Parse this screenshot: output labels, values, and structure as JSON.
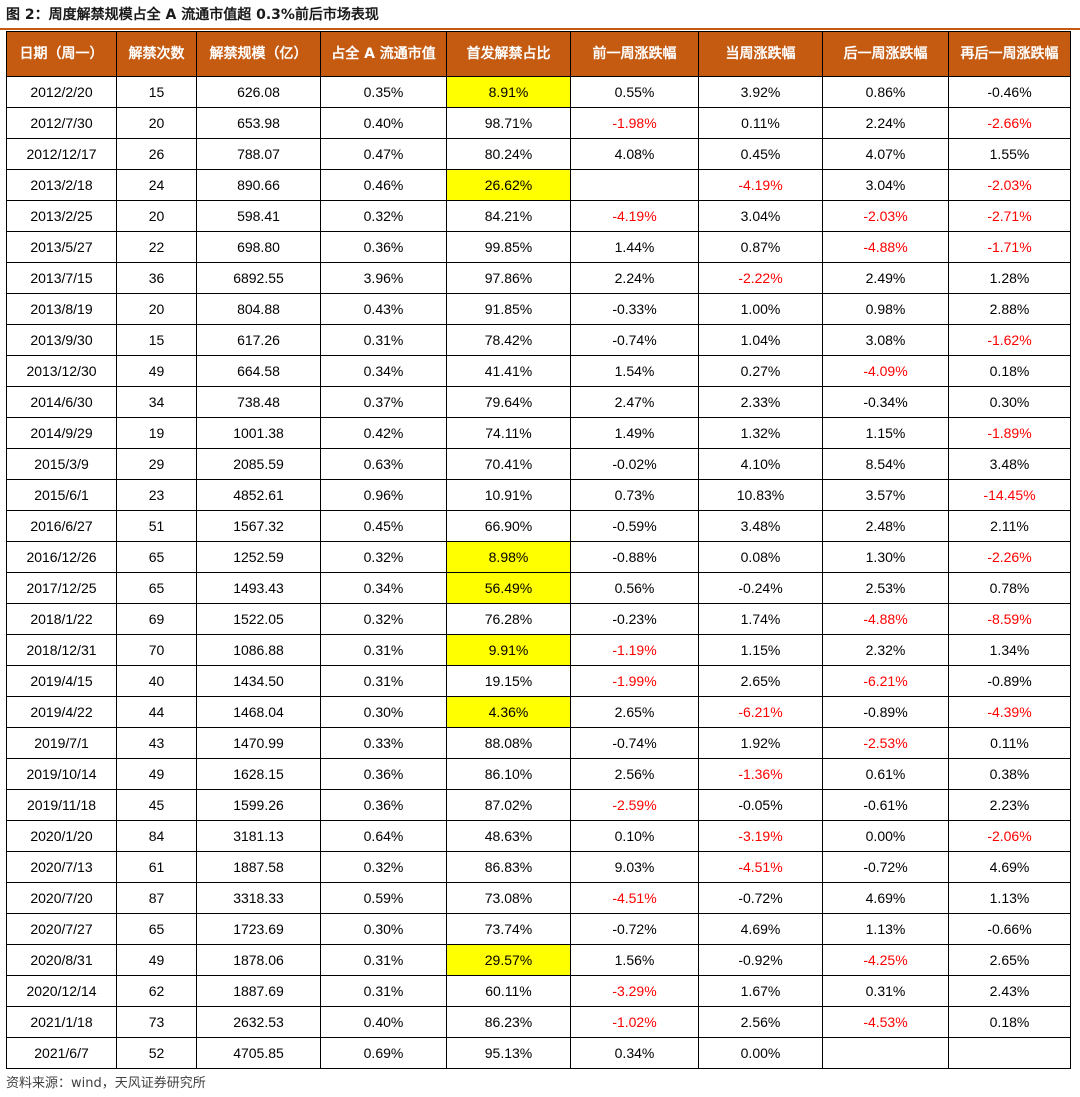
{
  "title": "图 2：周度解禁规模占全 A 流通市值超 0.3%前后市场表现",
  "source": "资料来源：wind，天风证券研究所",
  "colors": {
    "header_bg": "#c55a11",
    "header_text": "#ffffff",
    "highlight": "#ffff00",
    "negative": "#ff0000"
  },
  "columns": [
    "日期（周一）",
    "解禁次数",
    "解禁规模（亿）",
    "占全 A 流通市值",
    "首发解禁占比",
    "前一周涨跌幅",
    "当周涨跌幅",
    "后一周涨跌幅",
    "再后一周涨跌幅"
  ],
  "rows": [
    {
      "cells": [
        "2012/2/20",
        "15",
        "626.08",
        "0.35%",
        "8.91%",
        "0.55%",
        "3.92%",
        "0.86%",
        "-0.46%"
      ],
      "hl": true,
      "neg": []
    },
    {
      "cells": [
        "2012/7/30",
        "20",
        "653.98",
        "0.40%",
        "98.71%",
        "-1.98%",
        "0.11%",
        "2.24%",
        "-2.66%"
      ],
      "hl": false,
      "neg": [
        5,
        8
      ]
    },
    {
      "cells": [
        "2012/12/17",
        "26",
        "788.07",
        "0.47%",
        "80.24%",
        "4.08%",
        "0.45%",
        "4.07%",
        "1.55%"
      ],
      "hl": false,
      "neg": []
    },
    {
      "cells": [
        "2013/2/18",
        "24",
        "890.66",
        "0.46%",
        "26.62%",
        "",
        "-4.19%",
        "3.04%",
        "-2.03%"
      ],
      "hl": true,
      "neg": [
        6,
        8
      ]
    },
    {
      "cells": [
        "2013/2/25",
        "20",
        "598.41",
        "0.32%",
        "84.21%",
        "-4.19%",
        "3.04%",
        "-2.03%",
        "-2.71%"
      ],
      "hl": false,
      "neg": [
        5,
        7,
        8
      ]
    },
    {
      "cells": [
        "2013/5/27",
        "22",
        "698.80",
        "0.36%",
        "99.85%",
        "1.44%",
        "0.87%",
        "-4.88%",
        "-1.71%"
      ],
      "hl": false,
      "neg": [
        7,
        8
      ]
    },
    {
      "cells": [
        "2013/7/15",
        "36",
        "6892.55",
        "3.96%",
        "97.86%",
        "2.24%",
        "-2.22%",
        "2.49%",
        "1.28%"
      ],
      "hl": false,
      "neg": [
        6
      ]
    },
    {
      "cells": [
        "2013/8/19",
        "20",
        "804.88",
        "0.43%",
        "91.85%",
        "-0.33%",
        "1.00%",
        "0.98%",
        "2.88%"
      ],
      "hl": false,
      "neg": []
    },
    {
      "cells": [
        "2013/9/30",
        "15",
        "617.26",
        "0.31%",
        "78.42%",
        "-0.74%",
        "1.04%",
        "3.08%",
        "-1.62%"
      ],
      "hl": false,
      "neg": [
        8
      ]
    },
    {
      "cells": [
        "2013/12/30",
        "49",
        "664.58",
        "0.34%",
        "41.41%",
        "1.54%",
        "0.27%",
        "-4.09%",
        "0.18%"
      ],
      "hl": false,
      "neg": [
        7
      ]
    },
    {
      "cells": [
        "2014/6/30",
        "34",
        "738.48",
        "0.37%",
        "79.64%",
        "2.47%",
        "2.33%",
        "-0.34%",
        "0.30%"
      ],
      "hl": false,
      "neg": []
    },
    {
      "cells": [
        "2014/9/29",
        "19",
        "1001.38",
        "0.42%",
        "74.11%",
        "1.49%",
        "1.32%",
        "1.15%",
        "-1.89%"
      ],
      "hl": false,
      "neg": [
        8
      ]
    },
    {
      "cells": [
        "2015/3/9",
        "29",
        "2085.59",
        "0.63%",
        "70.41%",
        "-0.02%",
        "4.10%",
        "8.54%",
        "3.48%"
      ],
      "hl": false,
      "neg": []
    },
    {
      "cells": [
        "2015/6/1",
        "23",
        "4852.61",
        "0.96%",
        "10.91%",
        "0.73%",
        "10.83%",
        "3.57%",
        "-14.45%"
      ],
      "hl": false,
      "neg": [
        8
      ]
    },
    {
      "cells": [
        "2016/6/27",
        "51",
        "1567.32",
        "0.45%",
        "66.90%",
        "-0.59%",
        "3.48%",
        "2.48%",
        "2.11%"
      ],
      "hl": false,
      "neg": []
    },
    {
      "cells": [
        "2016/12/26",
        "65",
        "1252.59",
        "0.32%",
        "8.98%",
        "-0.88%",
        "0.08%",
        "1.30%",
        "-2.26%"
      ],
      "hl": true,
      "neg": [
        8
      ]
    },
    {
      "cells": [
        "2017/12/25",
        "65",
        "1493.43",
        "0.34%",
        "56.49%",
        "0.56%",
        "-0.24%",
        "2.53%",
        "0.78%"
      ],
      "hl": true,
      "neg": []
    },
    {
      "cells": [
        "2018/1/22",
        "69",
        "1522.05",
        "0.32%",
        "76.28%",
        "-0.23%",
        "1.74%",
        "-4.88%",
        "-8.59%"
      ],
      "hl": false,
      "neg": [
        7,
        8
      ]
    },
    {
      "cells": [
        "2018/12/31",
        "70",
        "1086.88",
        "0.31%",
        "9.91%",
        "-1.19%",
        "1.15%",
        "2.32%",
        "1.34%"
      ],
      "hl": true,
      "neg": [
        5
      ]
    },
    {
      "cells": [
        "2019/4/15",
        "40",
        "1434.50",
        "0.31%",
        "19.15%",
        "-1.99%",
        "2.65%",
        "-6.21%",
        "-0.89%"
      ],
      "hl": false,
      "neg": [
        5,
        7
      ]
    },
    {
      "cells": [
        "2019/4/22",
        "44",
        "1468.04",
        "0.30%",
        "4.36%",
        "2.65%",
        "-6.21%",
        "-0.89%",
        "-4.39%"
      ],
      "hl": true,
      "neg": [
        6,
        8
      ]
    },
    {
      "cells": [
        "2019/7/1",
        "43",
        "1470.99",
        "0.33%",
        "88.08%",
        "-0.74%",
        "1.92%",
        "-2.53%",
        "0.11%"
      ],
      "hl": false,
      "neg": [
        7
      ]
    },
    {
      "cells": [
        "2019/10/14",
        "49",
        "1628.15",
        "0.36%",
        "86.10%",
        "2.56%",
        "-1.36%",
        "0.61%",
        "0.38%"
      ],
      "hl": false,
      "neg": [
        6
      ]
    },
    {
      "cells": [
        "2019/11/18",
        "45",
        "1599.26",
        "0.36%",
        "87.02%",
        "-2.59%",
        "-0.05%",
        "-0.61%",
        "2.23%"
      ],
      "hl": false,
      "neg": [
        5
      ]
    },
    {
      "cells": [
        "2020/1/20",
        "84",
        "3181.13",
        "0.64%",
        "48.63%",
        "0.10%",
        "-3.19%",
        "0.00%",
        "-2.06%"
      ],
      "hl": false,
      "neg": [
        6,
        8
      ]
    },
    {
      "cells": [
        "2020/7/13",
        "61",
        "1887.58",
        "0.32%",
        "86.83%",
        "9.03%",
        "-4.51%",
        "-0.72%",
        "4.69%"
      ],
      "hl": false,
      "neg": [
        6
      ]
    },
    {
      "cells": [
        "2020/7/20",
        "87",
        "3318.33",
        "0.59%",
        "73.08%",
        "-4.51%",
        "-0.72%",
        "4.69%",
        "1.13%"
      ],
      "hl": false,
      "neg": [
        5
      ]
    },
    {
      "cells": [
        "2020/7/27",
        "65",
        "1723.69",
        "0.30%",
        "73.74%",
        "-0.72%",
        "4.69%",
        "1.13%",
        "-0.66%"
      ],
      "hl": false,
      "neg": []
    },
    {
      "cells": [
        "2020/8/31",
        "49",
        "1878.06",
        "0.31%",
        "29.57%",
        "1.56%",
        "-0.92%",
        "-4.25%",
        "2.65%"
      ],
      "hl": true,
      "neg": [
        7
      ]
    },
    {
      "cells": [
        "2020/12/14",
        "62",
        "1887.69",
        "0.31%",
        "60.11%",
        "-3.29%",
        "1.67%",
        "0.31%",
        "2.43%"
      ],
      "hl": false,
      "neg": [
        5
      ]
    },
    {
      "cells": [
        "2021/1/18",
        "73",
        "2632.53",
        "0.40%",
        "86.23%",
        "-1.02%",
        "2.56%",
        "-4.53%",
        "0.18%"
      ],
      "hl": false,
      "neg": [
        5,
        7
      ]
    },
    {
      "cells": [
        "2021/6/7",
        "52",
        "4705.85",
        "0.69%",
        "95.13%",
        "0.34%",
        "0.00%",
        "",
        ""
      ],
      "hl": false,
      "neg": []
    }
  ]
}
